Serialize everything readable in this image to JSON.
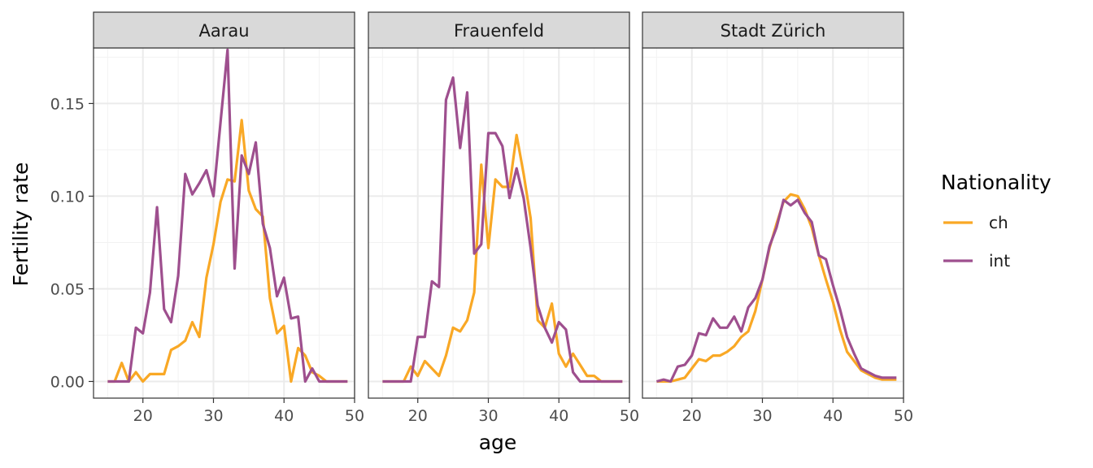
{
  "chart_data": {
    "type": "line",
    "xlabel": "age",
    "ylabel": "Fertility rate",
    "xlim": [
      13,
      50
    ],
    "ylim": [
      -0.009,
      0.18
    ],
    "x_ticks": [
      20,
      30,
      40,
      50
    ],
    "y_ticks": [
      0.0,
      0.05,
      0.1,
      0.15
    ],
    "y_tick_labels": [
      "0.00",
      "0.05",
      "0.10",
      "0.15"
    ],
    "grid": true,
    "legend": {
      "title": "Nationality",
      "position": "right",
      "entries": [
        {
          "name": "ch",
          "color": "#F9A825"
        },
        {
          "name": "int",
          "color": "#9E4F8E"
        }
      ]
    },
    "x": [
      15,
      16,
      17,
      18,
      19,
      20,
      21,
      22,
      23,
      24,
      25,
      26,
      27,
      28,
      29,
      30,
      31,
      32,
      33,
      34,
      35,
      36,
      37,
      38,
      39,
      40,
      41,
      42,
      43,
      44,
      45,
      46,
      47,
      48,
      49
    ],
    "facets": [
      {
        "label": "Aarau",
        "series": [
          {
            "name": "ch",
            "values": [
              0,
              0,
              0.01,
              0,
              0.005,
              0,
              0.004,
              0.004,
              0.004,
              0.017,
              0.019,
              0.022,
              0.032,
              0.024,
              0.056,
              0.074,
              0.097,
              0.109,
              0.108,
              0.141,
              0.103,
              0.093,
              0.089,
              0.045,
              0.026,
              0.03,
              0,
              0.018,
              0.014,
              0.005,
              0.003,
              0,
              0,
              0,
              0
            ]
          },
          {
            "name": "int",
            "values": [
              0,
              0,
              0,
              0,
              0.029,
              0.026,
              0.048,
              0.094,
              0.039,
              0.032,
              0.057,
              0.112,
              0.101,
              0.107,
              0.114,
              0.1,
              0.14,
              0.179,
              0.061,
              0.122,
              0.112,
              0.129,
              0.085,
              0.072,
              0.046,
              0.056,
              0.034,
              0.035,
              0,
              0.007,
              0,
              0,
              0,
              0,
              0
            ]
          }
        ]
      },
      {
        "label": "Frauenfeld",
        "series": [
          {
            "name": "ch",
            "values": [
              0,
              0,
              0,
              0,
              0.008,
              0.003,
              0.011,
              0.007,
              0.003,
              0.014,
              0.029,
              0.027,
              0.033,
              0.048,
              0.117,
              0.072,
              0.109,
              0.105,
              0.105,
              0.133,
              0.112,
              0.088,
              0.033,
              0.029,
              0.042,
              0.015,
              0.008,
              0.015,
              0.009,
              0.003,
              0.003,
              0,
              0,
              0,
              0
            ]
          },
          {
            "name": "int",
            "values": [
              0,
              0,
              0,
              0,
              0,
              0.024,
              0.024,
              0.054,
              0.051,
              0.152,
              0.164,
              0.126,
              0.156,
              0.069,
              0.074,
              0.134,
              0.134,
              0.127,
              0.099,
              0.115,
              0.099,
              0.072,
              0.041,
              0.029,
              0.021,
              0.032,
              0.028,
              0.005,
              0,
              0,
              0,
              0,
              0,
              0,
              0
            ]
          }
        ]
      },
      {
        "label": "Stadt Zürich",
        "series": [
          {
            "name": "ch",
            "values": [
              0,
              0,
              0,
              0.001,
              0.002,
              0.007,
              0.012,
              0.011,
              0.014,
              0.014,
              0.016,
              0.019,
              0.024,
              0.027,
              0.038,
              0.055,
              0.072,
              0.085,
              0.097,
              0.101,
              0.1,
              0.093,
              0.083,
              0.068,
              0.055,
              0.043,
              0.028,
              0.016,
              0.011,
              0.006,
              0.004,
              0.002,
              0.001,
              0.001,
              0.001
            ]
          },
          {
            "name": "int",
            "values": [
              0,
              0.001,
              0,
              0.008,
              0.009,
              0.014,
              0.026,
              0.025,
              0.034,
              0.029,
              0.029,
              0.035,
              0.027,
              0.04,
              0.045,
              0.055,
              0.073,
              0.083,
              0.098,
              0.095,
              0.098,
              0.091,
              0.086,
              0.068,
              0.066,
              0.052,
              0.039,
              0.024,
              0.015,
              0.007,
              0.005,
              0.003,
              0.002,
              0.002,
              0.002
            ]
          }
        ]
      }
    ]
  }
}
